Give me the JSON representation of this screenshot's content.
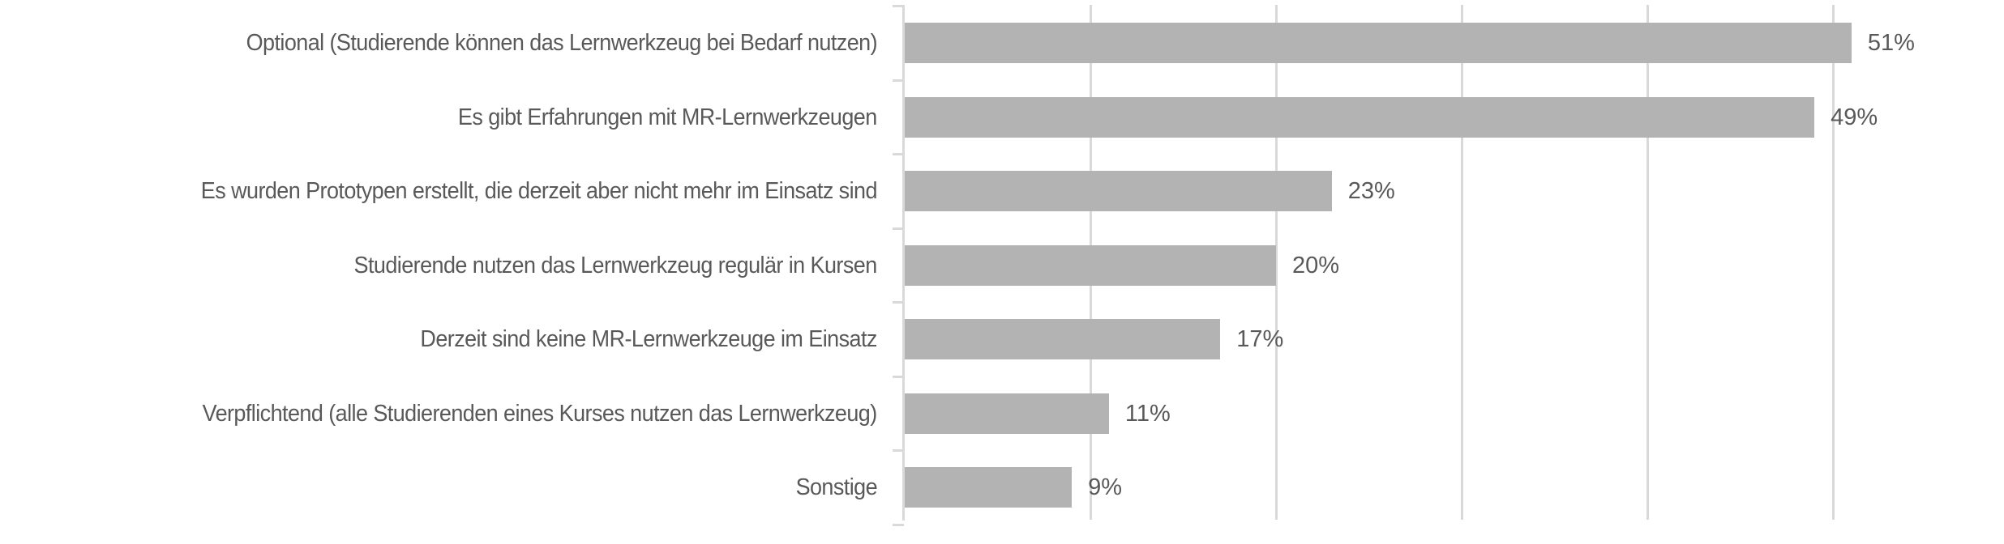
{
  "chart_data": {
    "type": "bar",
    "orientation": "horizontal",
    "title": "",
    "xlabel": "",
    "ylabel": "",
    "categories": [
      "Optional (Studierende können das Lernwerkzeug bei Bedarf nutzen)",
      "Es gibt Erfahrungen mit MR-Lernwerkzeugen",
      "Es wurden Prototypen erstellt, die derzeit aber nicht mehr im Einsatz sind",
      "Studierende nutzen das Lernwerkzeug regulär in Kursen",
      "Derzeit sind keine MR-Lernwerkzeuge im Einsatz",
      "Verpflichtend (alle Studierenden eines Kurses nutzen das Lernwerkzeug)",
      "Sonstige"
    ],
    "values": [
      51,
      49,
      23,
      20,
      17,
      11,
      9
    ],
    "value_labels": [
      "51%",
      "49%",
      "23%",
      "20%",
      "17%",
      "11%",
      "9%"
    ],
    "unit": "%",
    "xlim": [
      0,
      55
    ],
    "gridlines_at": [
      10,
      20,
      30,
      40,
      50
    ],
    "grid": true,
    "tick_labels_shown": false,
    "legend": null,
    "bar_color": "#b3b3b3",
    "grid_color": "#d9d9d9",
    "text_color": "#595959"
  }
}
